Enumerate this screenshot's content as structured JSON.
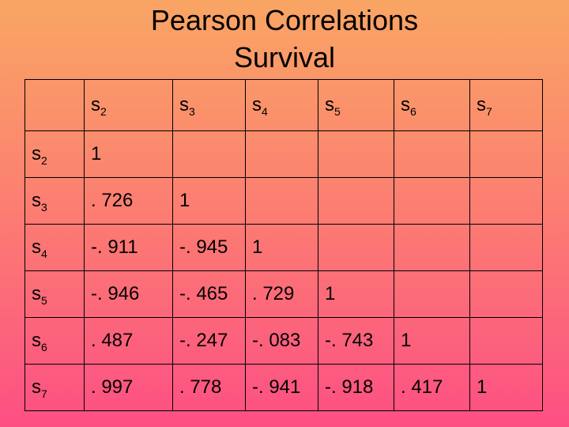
{
  "title": {
    "line1": "Pearson Correlations",
    "line2": "Survival"
  },
  "table": {
    "columns": [
      {
        "base": "s",
        "sub": "2"
      },
      {
        "base": "s",
        "sub": "3"
      },
      {
        "base": "s",
        "sub": "4"
      },
      {
        "base": "s",
        "sub": "5"
      },
      {
        "base": "s",
        "sub": "6"
      },
      {
        "base": "s",
        "sub": "7"
      }
    ],
    "rows": [
      {
        "label": {
          "base": "s",
          "sub": "2"
        },
        "cells": [
          "1",
          "",
          "",
          "",
          "",
          ""
        ]
      },
      {
        "label": {
          "base": "s",
          "sub": "3"
        },
        "cells": [
          ". 726",
          "1",
          "",
          "",
          "",
          ""
        ]
      },
      {
        "label": {
          "base": "s",
          "sub": "4"
        },
        "cells": [
          "-. 911",
          "-. 945",
          "1",
          "",
          "",
          ""
        ]
      },
      {
        "label": {
          "base": "s",
          "sub": "5"
        },
        "cells": [
          "-. 946",
          "-. 465",
          ". 729",
          "1",
          "",
          ""
        ]
      },
      {
        "label": {
          "base": "s",
          "sub": "6"
        },
        "cells": [
          ". 487",
          "-. 247",
          "-. 083",
          "-. 743",
          "1",
          ""
        ]
      },
      {
        "label": {
          "base": "s",
          "sub": "7"
        },
        "cells": [
          ". 997",
          ". 778",
          "-. 941",
          "-. 918",
          ". 417",
          "1"
        ]
      }
    ]
  }
}
